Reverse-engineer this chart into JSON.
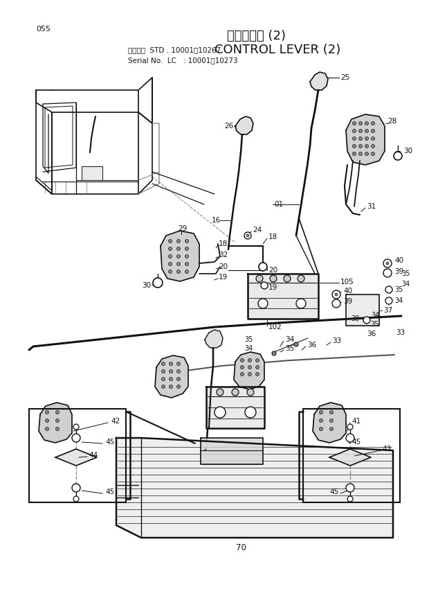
{
  "title_japanese": "操作レバー (2)",
  "title_english": "CONTROL LEVER (2)",
  "page_number": "055",
  "serial_line1": "適用号機  STD . 10001～10267",
  "serial_line2": "Serial No.  LC   : 10001～10273",
  "bg_color": "#ffffff",
  "lc": "#111111",
  "figsize": [
    6.2,
    8.76
  ],
  "dpi": 100
}
